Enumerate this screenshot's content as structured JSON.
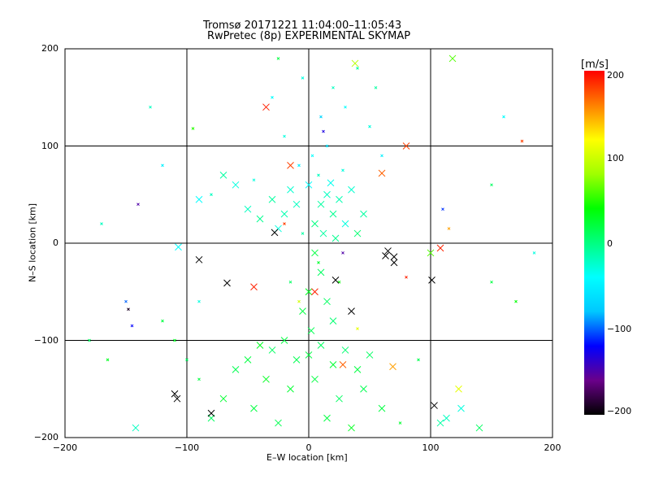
{
  "chart_data": {
    "type": "scatter",
    "title": "Tromsø 20171221 11:04:00–11:05:43",
    "subtitle": "RwPretec (8p) EXPERIMENTAL SKYMAP",
    "xlabel": "E–W location [km]",
    "ylabel": "N–S location [km]",
    "xlim": [
      -200,
      200
    ],
    "ylim": [
      -200,
      200
    ],
    "xticks": [
      "−200",
      "−100",
      "0",
      "100",
      "200"
    ],
    "yticks": [
      "−200",
      "−100",
      "0",
      "100",
      "200"
    ],
    "grid": true,
    "colorbar": {
      "label": "[m/s]",
      "range": [
        -200,
        200
      ],
      "ticks": [
        "200",
        "100",
        "0",
        "−100",
        "−200"
      ],
      "colors": [
        "#000000",
        "#6a008a",
        "#0000ff",
        "#00c8ff",
        "#00ffff",
        "#00ff80",
        "#00ff00",
        "#a0ff00",
        "#ffff00",
        "#ff8000",
        "#ff0000"
      ]
    },
    "points_format": [
      "x_km",
      "y_km",
      "velocity_ms",
      "large_marker"
    ],
    "points": [
      [
        10,
        40,
        -10,
        1
      ],
      [
        15,
        50,
        -20,
        1
      ],
      [
        20,
        30,
        -5,
        1
      ],
      [
        25,
        45,
        -15,
        1
      ],
      [
        5,
        20,
        0,
        1
      ],
      [
        30,
        20,
        -30,
        1
      ],
      [
        35,
        55,
        -25,
        1
      ],
      [
        12,
        10,
        -10,
        1
      ],
      [
        22,
        5,
        -5,
        1
      ],
      [
        40,
        10,
        5,
        1
      ],
      [
        -10,
        40,
        -20,
        1
      ],
      [
        -20,
        30,
        -15,
        1
      ],
      [
        -30,
        45,
        -10,
        1
      ],
      [
        -40,
        25,
        -5,
        1
      ],
      [
        -50,
        35,
        -20,
        1
      ],
      [
        -25,
        15,
        -30,
        1
      ],
      [
        -15,
        55,
        -25,
        1
      ],
      [
        -5,
        10,
        -10,
        0
      ],
      [
        0,
        60,
        -40,
        1
      ],
      [
        45,
        30,
        -10,
        1
      ],
      [
        18,
        62,
        -35,
        1
      ],
      [
        8,
        70,
        -20,
        0
      ],
      [
        28,
        75,
        -30,
        0
      ],
      [
        -8,
        80,
        -50,
        0
      ],
      [
        3,
        90,
        -40,
        0
      ],
      [
        15,
        100,
        -60,
        0
      ],
      [
        -20,
        110,
        -30,
        0
      ],
      [
        10,
        130,
        -70,
        0
      ],
      [
        30,
        140,
        -40,
        0
      ],
      [
        -5,
        170,
        -30,
        0
      ],
      [
        20,
        160,
        -20,
        0
      ],
      [
        40,
        180,
        -10,
        0
      ],
      [
        -30,
        150,
        -40,
        0
      ],
      [
        50,
        120,
        -30,
        0
      ],
      [
        60,
        90,
        -50,
        0
      ],
      [
        -60,
        60,
        -30,
        1
      ],
      [
        -80,
        50,
        -20,
        0
      ],
      [
        -90,
        45,
        -40,
        1
      ],
      [
        -70,
        70,
        -10,
        1
      ],
      [
        -45,
        65,
        -30,
        0
      ],
      [
        5,
        -10,
        20,
        1
      ],
      [
        10,
        -30,
        10,
        1
      ],
      [
        0,
        -50,
        30,
        1
      ],
      [
        15,
        -60,
        10,
        1
      ],
      [
        -5,
        -70,
        20,
        1
      ],
      [
        20,
        -80,
        5,
        1
      ],
      [
        2,
        -90,
        15,
        1
      ],
      [
        8,
        -20,
        25,
        0
      ],
      [
        25,
        -40,
        40,
        0
      ],
      [
        -15,
        -40,
        10,
        0
      ],
      [
        -20,
        -100,
        20,
        1
      ],
      [
        -30,
        -110,
        10,
        1
      ],
      [
        -40,
        -105,
        30,
        1
      ],
      [
        -10,
        -120,
        15,
        1
      ],
      [
        0,
        -115,
        20,
        1
      ],
      [
        10,
        -105,
        10,
        1
      ],
      [
        20,
        -125,
        25,
        1
      ],
      [
        30,
        -110,
        5,
        1
      ],
      [
        40,
        -130,
        20,
        1
      ],
      [
        50,
        -115,
        10,
        1
      ],
      [
        -50,
        -120,
        20,
        1
      ],
      [
        -60,
        -130,
        15,
        1
      ],
      [
        -35,
        -140,
        30,
        1
      ],
      [
        -15,
        -150,
        25,
        1
      ],
      [
        5,
        -140,
        20,
        1
      ],
      [
        25,
        -160,
        10,
        1
      ],
      [
        45,
        -150,
        15,
        1
      ],
      [
        -45,
        -170,
        20,
        1
      ],
      [
        -70,
        -160,
        25,
        1
      ],
      [
        -80,
        -180,
        10,
        1
      ],
      [
        15,
        -180,
        20,
        1
      ],
      [
        35,
        -190,
        30,
        1
      ],
      [
        -25,
        -185,
        15,
        1
      ],
      [
        60,
        -170,
        20,
        1
      ],
      [
        75,
        -185,
        25,
        0
      ],
      [
        -90,
        -140,
        20,
        0
      ],
      [
        -100,
        -120,
        10,
        0
      ],
      [
        -110,
        -100,
        30,
        0
      ],
      [
        -120,
        -80,
        20,
        0
      ],
      [
        90,
        -120,
        15,
        0
      ],
      [
        -110,
        -155,
        -200,
        1
      ],
      [
        -108,
        -160,
        -200,
        1
      ],
      [
        -80,
        -175,
        -200,
        1
      ],
      [
        103,
        -167,
        -200,
        1
      ],
      [
        70,
        -14,
        -200,
        1
      ],
      [
        70,
        -20,
        -200,
        1
      ],
      [
        65,
        -8,
        -200,
        1
      ],
      [
        -90,
        -17,
        -200,
        1
      ],
      [
        -67,
        -41,
        -200,
        1
      ],
      [
        35,
        -70,
        -200,
        1
      ],
      [
        101,
        -38,
        -200,
        1
      ],
      [
        22,
        -38,
        -200,
        1
      ],
      [
        -28,
        11,
        -200,
        1
      ],
      [
        63,
        -13,
        -200,
        1
      ],
      [
        -45,
        -45,
        190,
        1
      ],
      [
        28,
        -125,
        170,
        1
      ],
      [
        80,
        100,
        180,
        1
      ],
      [
        -35,
        140,
        190,
        1
      ],
      [
        60,
        72,
        170,
        1
      ],
      [
        108,
        -5,
        190,
        1
      ],
      [
        -15,
        80,
        180,
        1
      ],
      [
        5,
        -50,
        190,
        1
      ],
      [
        -20,
        20,
        180,
        0
      ],
      [
        80,
        -35,
        190,
        0
      ],
      [
        118,
        190,
        60,
        1
      ],
      [
        123,
        -150,
        110,
        1
      ],
      [
        38,
        185,
        90,
        1
      ],
      [
        69,
        -127,
        150,
        1
      ],
      [
        -8,
        -60,
        100,
        0
      ],
      [
        40,
        -88,
        110,
        0
      ],
      [
        100,
        -10,
        60,
        1
      ],
      [
        -95,
        118,
        50,
        0
      ],
      [
        108,
        -185,
        -10,
        1
      ],
      [
        113,
        -180,
        -20,
        1
      ],
      [
        125,
        -170,
        -30,
        1
      ],
      [
        140,
        -190,
        10,
        1
      ],
      [
        -142,
        -190,
        -20,
        1
      ],
      [
        -107,
        -4,
        -40,
        1
      ],
      [
        -90,
        -60,
        -30,
        0
      ],
      [
        -120,
        80,
        -50,
        0
      ],
      [
        -150,
        -60,
        -100,
        0
      ],
      [
        -140,
        40,
        -150,
        0
      ],
      [
        150,
        -40,
        20,
        0
      ],
      [
        160,
        130,
        -40,
        0
      ],
      [
        175,
        105,
        180,
        0
      ],
      [
        -170,
        20,
        -20,
        0
      ],
      [
        -165,
        -120,
        30,
        0
      ],
      [
        170,
        -60,
        40,
        0
      ],
      [
        150,
        60,
        10,
        0
      ],
      [
        -130,
        140,
        -20,
        0
      ],
      [
        -180,
        -100,
        10,
        0
      ],
      [
        185,
        -10,
        -30,
        0
      ],
      [
        -145,
        -85,
        -120,
        0
      ],
      [
        -148,
        -68,
        -190,
        0
      ],
      [
        110,
        35,
        -110,
        0
      ],
      [
        115,
        15,
        150,
        0
      ],
      [
        -25,
        190,
        20,
        0
      ],
      [
        55,
        160,
        -10,
        0
      ],
      [
        12,
        115,
        -130,
        0
      ],
      [
        28,
        -10,
        -150,
        0
      ]
    ]
  }
}
